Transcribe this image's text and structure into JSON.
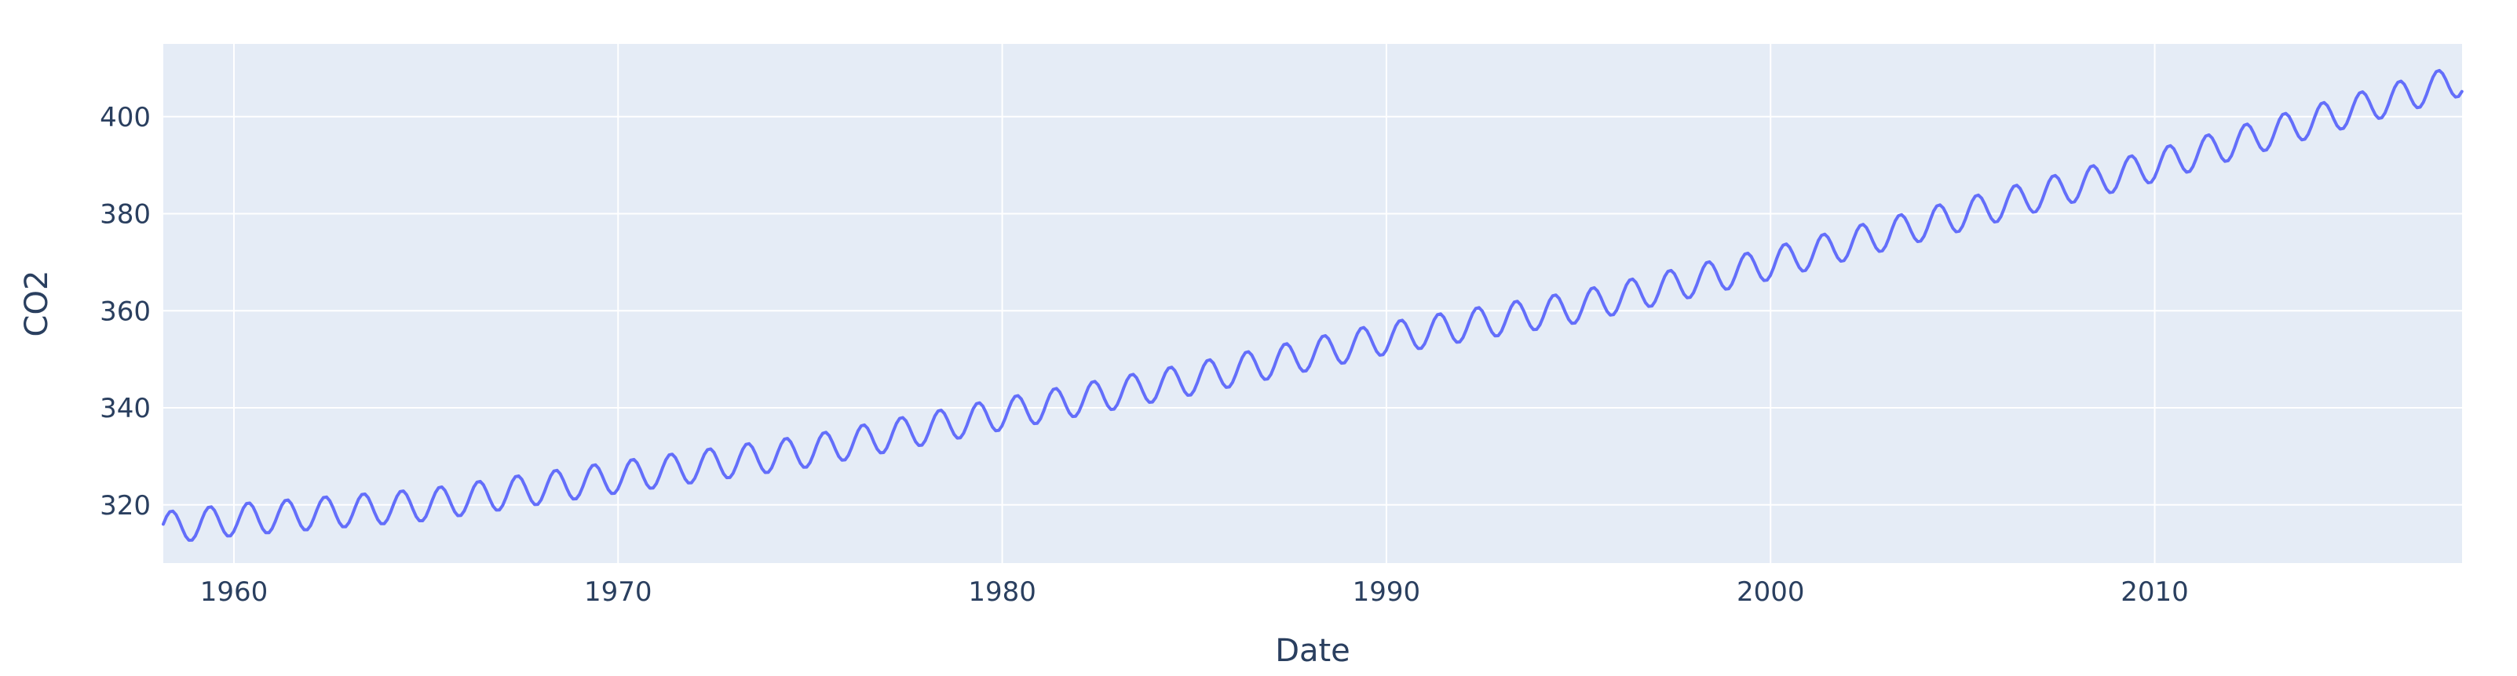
{
  "chart_data": {
    "type": "line",
    "title": "",
    "xlabel": "Date",
    "ylabel": "CO2",
    "x_axis": {
      "type": "date",
      "range": [
        "1958-03-01",
        "2018-01-01"
      ],
      "ticks": [
        "1960",
        "1970",
        "1980",
        "1990",
        "2000",
        "2010"
      ]
    },
    "y_axis": {
      "range": [
        308,
        415
      ],
      "ticks": [
        320,
        340,
        360,
        380,
        400
      ]
    },
    "grid": true,
    "legend": "none",
    "colors": {
      "plot_bg": "#e5ecf6",
      "grid": "#ffffff",
      "line": "#636efa",
      "text": "#2a3f5f"
    },
    "trend_anchors": {
      "years": [
        1958.2,
        1960,
        1965,
        1970,
        1975,
        1980,
        1985,
        1990,
        1995,
        2000,
        2005,
        2010,
        2015,
        2018.0
      ],
      "values": [
        315.3,
        316.9,
        320.0,
        325.7,
        331.1,
        338.7,
        346.0,
        354.3,
        360.8,
        369.7,
        379.8,
        389.9,
        401.0,
        407.6
      ]
    },
    "seasonal_amplitude_ppm": 3.3,
    "series": [
      {
        "name": "",
        "sampling": "monthly"
      }
    ]
  }
}
